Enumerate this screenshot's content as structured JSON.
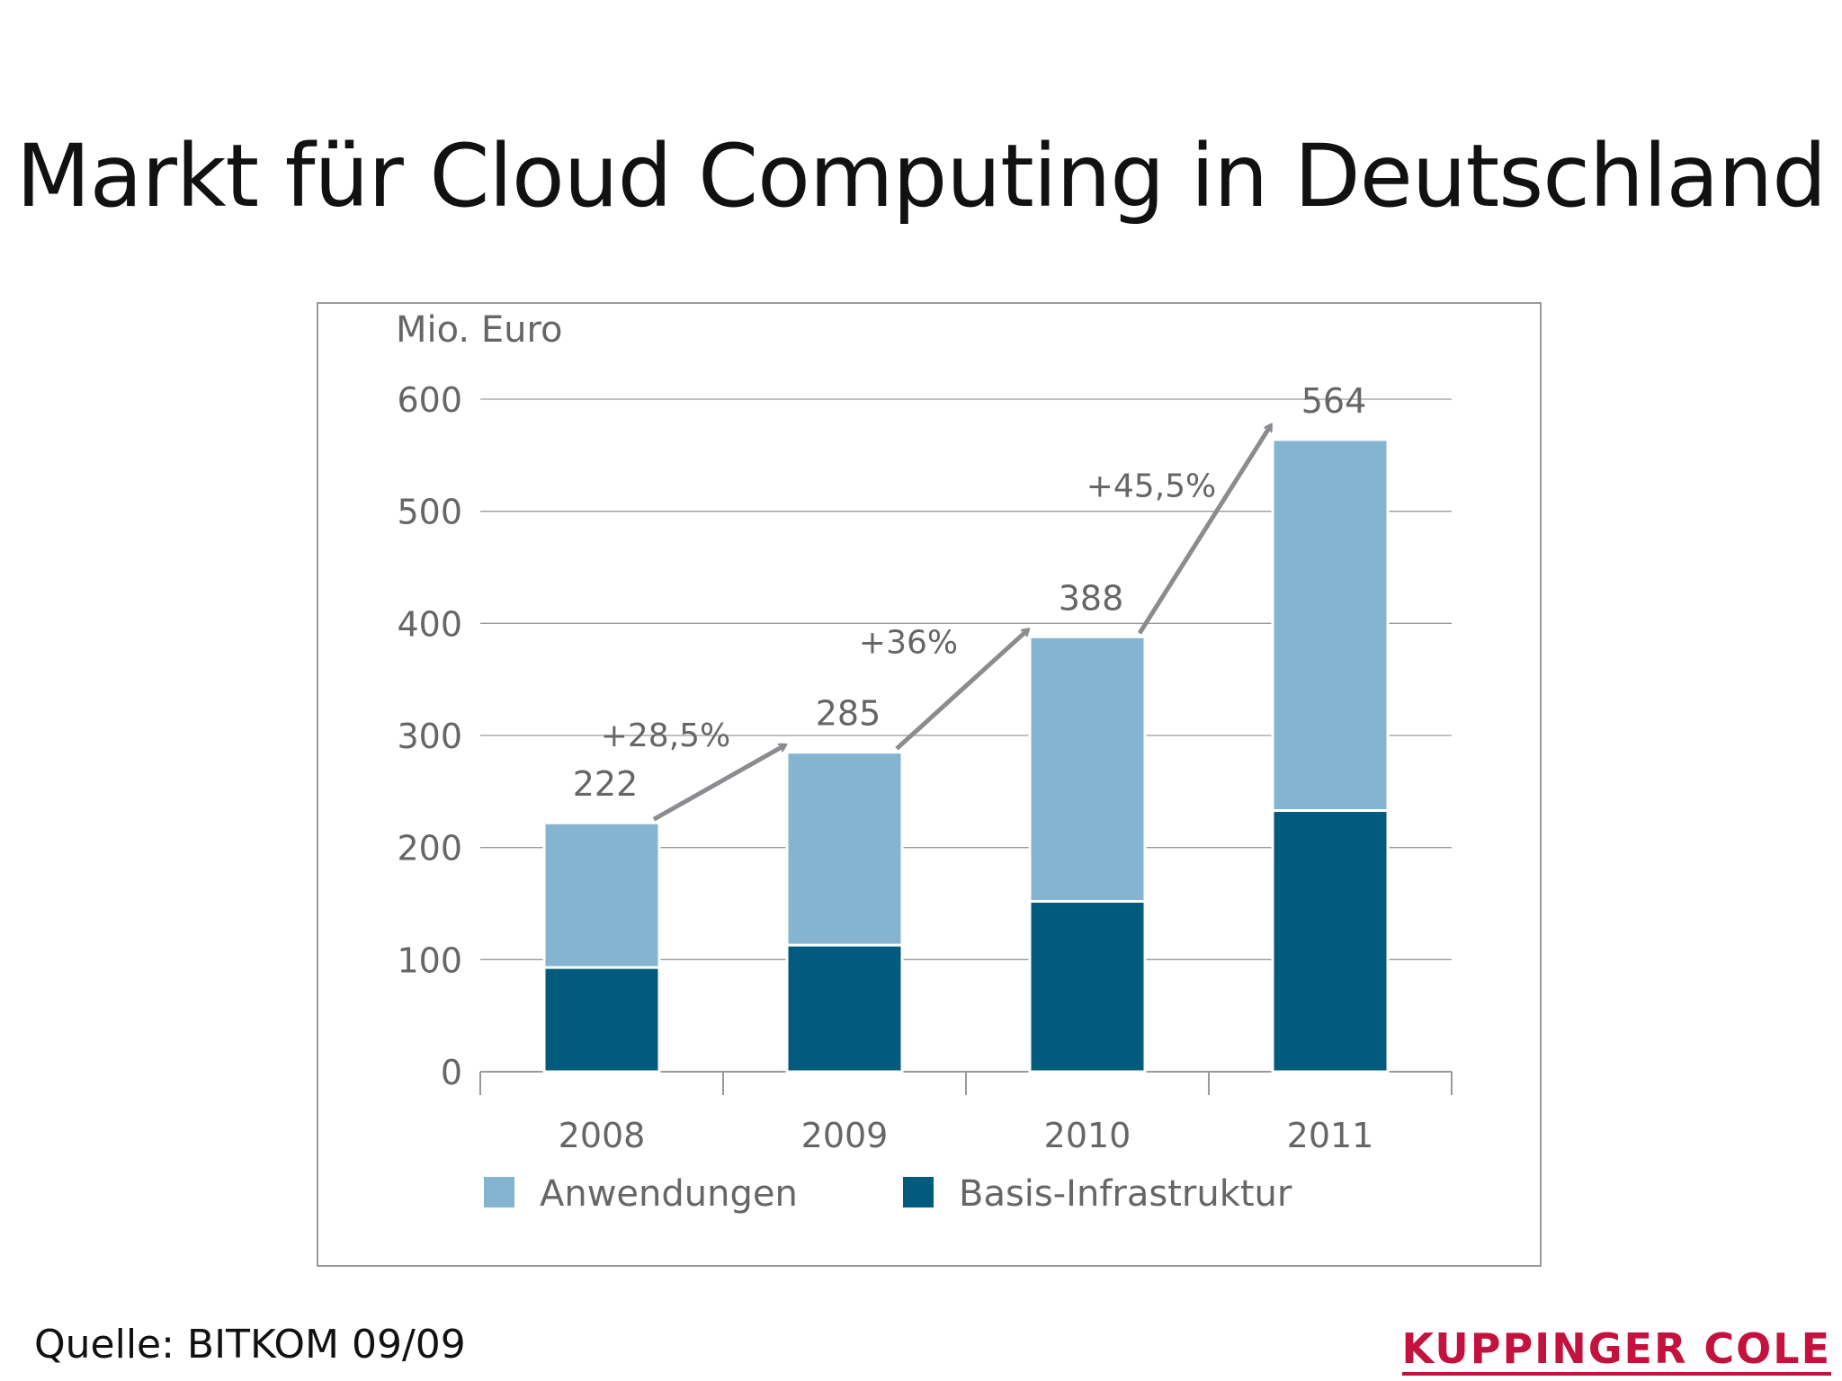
{
  "slide": {
    "title": "Markt für Cloud Computing in Deutschland",
    "source": "Quelle: BITKOM 09/09",
    "brand": "KUPPINGER COLE"
  },
  "colors": {
    "anwendungen": "#84b4cf",
    "basis": "#025a7c",
    "grid": "#9a9a9a",
    "arrow": "#8c8c90",
    "brand": "#c4123e"
  },
  "chart_data": {
    "type": "bar",
    "stacked": true,
    "ylabel": "Mio. Euro",
    "ylim": [
      0,
      600
    ],
    "yticks": [
      0,
      100,
      200,
      300,
      400,
      500,
      600
    ],
    "categories": [
      "2008",
      "2009",
      "2010",
      "2011"
    ],
    "series": [
      {
        "name": "Basis-Infrastruktur",
        "values": [
          93,
          113,
          152,
          233
        ]
      },
      {
        "name": "Anwendungen",
        "values": [
          129,
          172,
          236,
          331
        ]
      }
    ],
    "totals": [
      "222",
      "285",
      "388",
      "564"
    ],
    "growth": [
      "+28,5%",
      "+36%",
      "+45,5%"
    ],
    "legend": [
      "Anwendungen",
      "Basis-Infrastruktur"
    ],
    "grid": true,
    "legend_position": "bottom"
  }
}
